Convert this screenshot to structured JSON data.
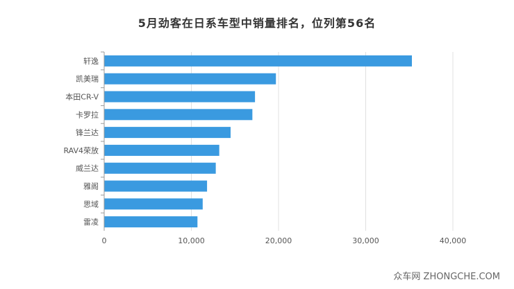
{
  "chart_data": {
    "type": "bar",
    "orientation": "horizontal",
    "title": "5月劲客在日系车型中销量排名，位列第56名",
    "categories": [
      "轩逸",
      "凯美瑞",
      "本田CR-V",
      "卡罗拉",
      "锋兰达",
      "RAV4荣放",
      "威兰达",
      "雅阁",
      "思域",
      "雷凌"
    ],
    "values": [
      35300,
      19700,
      17300,
      17000,
      14500,
      13200,
      12800,
      11800,
      11300,
      10700
    ],
    "xlim": [
      0,
      45000
    ],
    "xticks": [
      0,
      10000,
      20000,
      30000,
      40000
    ],
    "xtick_labels": [
      "0",
      "10,000",
      "20,000",
      "30,000",
      "40,000"
    ],
    "grid": true,
    "bar_color": "#3a9ae0"
  },
  "watermark": "众车网  ZHONGCHE.COM"
}
